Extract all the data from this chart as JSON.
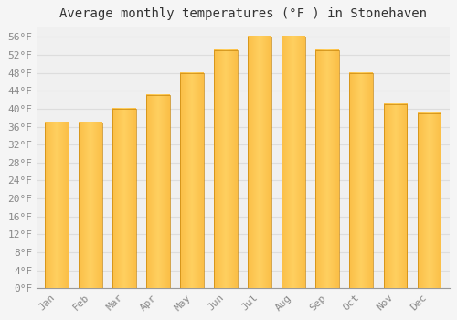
{
  "title": "Average monthly temperatures (°F ) in Stonehaven",
  "months": [
    "Jan",
    "Feb",
    "Mar",
    "Apr",
    "May",
    "Jun",
    "Jul",
    "Aug",
    "Sep",
    "Oct",
    "Nov",
    "Dec"
  ],
  "values": [
    37,
    37,
    40,
    43,
    48,
    53,
    56,
    56,
    53,
    48,
    41,
    39
  ],
  "bar_color_outer": "#F5A623",
  "bar_color_inner": "#FFD060",
  "ylim": [
    0,
    58
  ],
  "yticks": [
    0,
    4,
    8,
    12,
    16,
    20,
    24,
    28,
    32,
    36,
    40,
    44,
    48,
    52,
    56
  ],
  "ytick_labels": [
    "0°F",
    "4°F",
    "8°F",
    "12°F",
    "16°F",
    "20°F",
    "24°F",
    "28°F",
    "32°F",
    "36°F",
    "40°F",
    "44°F",
    "48°F",
    "52°F",
    "56°F"
  ],
  "background_color": "#F5F5F5",
  "plot_bg_color": "#F0F0F0",
  "grid_color": "#DDDDDD",
  "title_fontsize": 10,
  "tick_fontsize": 8,
  "bar_edge_color": "#C8860A",
  "font_family": "monospace",
  "tick_color": "#888888"
}
